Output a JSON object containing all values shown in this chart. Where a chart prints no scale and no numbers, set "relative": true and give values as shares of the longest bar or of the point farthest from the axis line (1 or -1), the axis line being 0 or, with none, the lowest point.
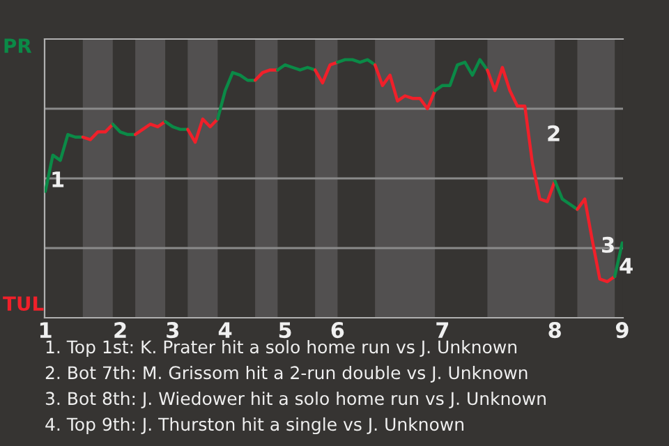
{
  "chart_data": {
    "type": "line",
    "relative": true,
    "categories": [
      "1",
      null,
      null,
      null,
      null,
      null,
      null,
      null,
      null,
      null,
      "2",
      null,
      null,
      null,
      null,
      null,
      null,
      "3",
      null,
      null,
      null,
      null,
      null,
      null,
      "4",
      null,
      null,
      null,
      null,
      null,
      null,
      null,
      "5",
      null,
      null,
      null,
      null,
      null,
      null,
      "6",
      null,
      null,
      null,
      null,
      null,
      null,
      null,
      null,
      null,
      null,
      null,
      null,
      null,
      "7",
      null,
      null,
      null,
      null,
      null,
      null,
      null,
      null,
      null,
      null,
      null,
      null,
      null,
      null,
      "8",
      null,
      null,
      null,
      null,
      null,
      null,
      null,
      null,
      "9"
    ],
    "series": [
      {
        "color": "#0b8a47",
        "values": [
          0.49,
          0.63,
          0.61,
          0.71,
          0.7,
          0.7,
          null,
          null,
          null,
          null,
          null,
          null,
          null,
          null,
          null,
          null,
          null,
          null,
          null,
          null,
          null,
          null,
          null,
          null,
          null,
          null,
          null,
          null,
          null,
          null,
          null,
          null,
          null,
          null,
          null,
          null,
          null,
          null,
          null,
          null,
          null,
          null,
          null,
          null,
          null,
          null,
          null,
          null,
          null,
          null,
          null,
          null,
          null,
          null,
          null,
          null,
          null,
          null,
          null,
          null,
          null,
          null,
          null,
          null,
          null,
          null,
          null,
          null,
          null,
          null,
          null,
          null,
          null,
          null,
          null,
          null,
          null,
          null
        ]
      },
      {
        "color": "#f0202a",
        "values": [
          null,
          null,
          null,
          null,
          null,
          0.7,
          0.69,
          0.72,
          0.72,
          0.75,
          null,
          null,
          null,
          null,
          null,
          null,
          null,
          null,
          null,
          null,
          null,
          null,
          null,
          null,
          null,
          null,
          null,
          null,
          null,
          null,
          null,
          null,
          null,
          null,
          null,
          null,
          null,
          null,
          null,
          null,
          null,
          null,
          null,
          null,
          null,
          null,
          null,
          null,
          null,
          null,
          null,
          null,
          null,
          null,
          null,
          null,
          null,
          null,
          null,
          null,
          null,
          null,
          null,
          null,
          null,
          null,
          null,
          null,
          null,
          null,
          null,
          null,
          null,
          null,
          null,
          null,
          null,
          null
        ]
      },
      {
        "color": "#0b8a47",
        "values": [
          null,
          null,
          null,
          null,
          null,
          null,
          null,
          null,
          null,
          0.75,
          0.72,
          0.71,
          0.71,
          null,
          null,
          null,
          null,
          null,
          null,
          null,
          null,
          null,
          null,
          null,
          null,
          null,
          null,
          null,
          null,
          null,
          null,
          null,
          null,
          null,
          null,
          null,
          null,
          null,
          null,
          null,
          null,
          null,
          null,
          null,
          null,
          null,
          null,
          null,
          null,
          null,
          null,
          null,
          null,
          null,
          null,
          null,
          null,
          null,
          null,
          null,
          null,
          null,
          null,
          null,
          null,
          null,
          null,
          null,
          null,
          null,
          null,
          null,
          null,
          null,
          null,
          null,
          null,
          null
        ]
      },
      {
        "color": "#f0202a",
        "values": [
          null,
          null,
          null,
          null,
          null,
          null,
          null,
          null,
          null,
          null,
          null,
          null,
          0.71,
          0.73,
          0.75,
          0.74,
          0.76,
          null,
          null,
          null,
          null,
          null,
          null,
          null,
          null,
          null,
          null,
          null,
          null,
          null,
          null,
          null,
          null,
          null,
          null,
          null,
          null,
          null,
          null,
          null,
          null,
          null,
          null,
          null,
          null,
          null,
          null,
          null,
          null,
          null,
          null,
          null,
          null,
          null,
          null,
          null,
          null,
          null,
          null,
          null,
          null,
          null,
          null,
          null,
          null,
          null,
          null,
          null,
          null,
          null,
          null,
          null,
          null,
          null,
          null,
          null,
          null,
          null
        ]
      },
      {
        "color": "#0b8a47",
        "values": [
          null,
          null,
          null,
          null,
          null,
          null,
          null,
          null,
          null,
          null,
          null,
          null,
          null,
          null,
          null,
          null,
          0.76,
          0.74,
          0.73,
          0.73,
          null,
          null,
          null,
          null,
          null,
          null,
          null,
          null,
          null,
          null,
          null,
          null,
          null,
          null,
          null,
          null,
          null,
          null,
          null,
          null,
          null,
          null,
          null,
          null,
          null,
          null,
          null,
          null,
          null,
          null,
          null,
          null,
          null,
          null,
          null,
          null,
          null,
          null,
          null,
          null,
          null,
          null,
          null,
          null,
          null,
          null,
          null,
          null,
          null,
          null,
          null,
          null,
          null,
          null,
          null,
          null,
          null,
          null
        ]
      },
      {
        "color": "#f0202a",
        "values": [
          null,
          null,
          null,
          null,
          null,
          null,
          null,
          null,
          null,
          null,
          null,
          null,
          null,
          null,
          null,
          null,
          null,
          null,
          null,
          0.73,
          0.68,
          0.77,
          0.74,
          0.77,
          null,
          null,
          null,
          null,
          null,
          null,
          null,
          null,
          null,
          null,
          null,
          null,
          null,
          null,
          null,
          null,
          null,
          null,
          null,
          null,
          null,
          null,
          null,
          null,
          null,
          null,
          null,
          null,
          null,
          null,
          null,
          null,
          null,
          null,
          null,
          null,
          null,
          null,
          null,
          null,
          null,
          null,
          null,
          null,
          null,
          null,
          null,
          null,
          null,
          null,
          null,
          null,
          null,
          null
        ]
      },
      {
        "color": "#0b8a47",
        "values": [
          null,
          null,
          null,
          null,
          null,
          null,
          null,
          null,
          null,
          null,
          null,
          null,
          null,
          null,
          null,
          null,
          null,
          null,
          null,
          null,
          null,
          null,
          null,
          0.77,
          0.88,
          0.95,
          0.94,
          0.92,
          0.92,
          null,
          null,
          null,
          null,
          null,
          null,
          null,
          null,
          null,
          null,
          null,
          null,
          null,
          null,
          null,
          null,
          null,
          null,
          null,
          null,
          null,
          null,
          null,
          null,
          null,
          null,
          null,
          null,
          null,
          null,
          null,
          null,
          null,
          null,
          null,
          null,
          null,
          null,
          null,
          null,
          null,
          null,
          null,
          null,
          null,
          null,
          null,
          null,
          null
        ]
      },
      {
        "color": "#f0202a",
        "values": [
          null,
          null,
          null,
          null,
          null,
          null,
          null,
          null,
          null,
          null,
          null,
          null,
          null,
          null,
          null,
          null,
          null,
          null,
          null,
          null,
          null,
          null,
          null,
          null,
          null,
          null,
          null,
          null,
          0.92,
          0.95,
          0.96,
          0.96,
          null,
          null,
          null,
          null,
          null,
          null,
          null,
          null,
          null,
          null,
          null,
          null,
          null,
          null,
          null,
          null,
          null,
          null,
          null,
          null,
          null,
          null,
          null,
          null,
          null,
          null,
          null,
          null,
          null,
          null,
          null,
          null,
          null,
          null,
          null,
          null,
          null,
          null,
          null,
          null,
          null,
          null,
          null,
          null,
          null,
          null
        ]
      },
      {
        "color": "#0b8a47",
        "values": [
          null,
          null,
          null,
          null,
          null,
          null,
          null,
          null,
          null,
          null,
          null,
          null,
          null,
          null,
          null,
          null,
          null,
          null,
          null,
          null,
          null,
          null,
          null,
          null,
          null,
          null,
          null,
          null,
          null,
          null,
          null,
          0.96,
          0.98,
          0.97,
          0.96,
          0.97,
          0.96,
          null,
          null,
          null,
          null,
          null,
          null,
          null,
          null,
          null,
          null,
          null,
          null,
          null,
          null,
          null,
          null,
          null,
          null,
          null,
          null,
          null,
          null,
          null,
          null,
          null,
          null,
          null,
          null,
          null,
          null,
          null,
          null,
          null,
          null,
          null,
          null,
          null,
          null,
          null,
          null,
          null
        ]
      },
      {
        "color": "#f0202a",
        "values": [
          null,
          null,
          null,
          null,
          null,
          null,
          null,
          null,
          null,
          null,
          null,
          null,
          null,
          null,
          null,
          null,
          null,
          null,
          null,
          null,
          null,
          null,
          null,
          null,
          null,
          null,
          null,
          null,
          null,
          null,
          null,
          null,
          null,
          null,
          null,
          null,
          0.96,
          0.91,
          0.98,
          0.99,
          null,
          null,
          null,
          null,
          null,
          null,
          null,
          null,
          null,
          null,
          null,
          null,
          null,
          null,
          null,
          null,
          null,
          null,
          null,
          null,
          null,
          null,
          null,
          null,
          null,
          null,
          null,
          null,
          null,
          null,
          null,
          null,
          null,
          null,
          null,
          null,
          null,
          null
        ]
      },
      {
        "color": "#0b8a47",
        "values": [
          null,
          null,
          null,
          null,
          null,
          null,
          null,
          null,
          null,
          null,
          null,
          null,
          null,
          null,
          null,
          null,
          null,
          null,
          null,
          null,
          null,
          null,
          null,
          null,
          null,
          null,
          null,
          null,
          null,
          null,
          null,
          null,
          null,
          null,
          null,
          null,
          null,
          null,
          null,
          0.99,
          1,
          1,
          0.99,
          1,
          0.98,
          null,
          null,
          null,
          null,
          null,
          null,
          null,
          null,
          null,
          null,
          null,
          null,
          null,
          null,
          null,
          null,
          null,
          null,
          null,
          null,
          null,
          null,
          null,
          null,
          null,
          null,
          null,
          null,
          null,
          null,
          null,
          null,
          null
        ]
      },
      {
        "color": "#f0202a",
        "values": [
          null,
          null,
          null,
          null,
          null,
          null,
          null,
          null,
          null,
          null,
          null,
          null,
          null,
          null,
          null,
          null,
          null,
          null,
          null,
          null,
          null,
          null,
          null,
          null,
          null,
          null,
          null,
          null,
          null,
          null,
          null,
          null,
          null,
          null,
          null,
          null,
          null,
          null,
          null,
          null,
          null,
          null,
          null,
          null,
          0.98,
          0.9,
          0.94,
          0.84,
          0.86,
          0.85,
          0.85,
          0.81,
          0.88,
          null,
          null,
          null,
          null,
          null,
          null,
          null,
          null,
          null,
          null,
          null,
          null,
          null,
          null,
          null,
          null,
          null,
          null,
          null,
          null,
          null,
          null,
          null,
          null,
          null
        ]
      },
      {
        "color": "#0b8a47",
        "values": [
          null,
          null,
          null,
          null,
          null,
          null,
          null,
          null,
          null,
          null,
          null,
          null,
          null,
          null,
          null,
          null,
          null,
          null,
          null,
          null,
          null,
          null,
          null,
          null,
          null,
          null,
          null,
          null,
          null,
          null,
          null,
          null,
          null,
          null,
          null,
          null,
          null,
          null,
          null,
          null,
          null,
          null,
          null,
          null,
          null,
          null,
          null,
          null,
          null,
          null,
          null,
          null,
          0.88,
          0.9,
          0.9,
          0.98,
          0.99,
          0.94,
          1,
          0.96,
          null,
          null,
          null,
          null,
          null,
          null,
          null,
          null,
          null,
          null,
          null,
          null,
          null,
          null,
          null,
          null,
          null,
          null
        ]
      },
      {
        "color": "#f0202a",
        "values": [
          null,
          null,
          null,
          null,
          null,
          null,
          null,
          null,
          null,
          null,
          null,
          null,
          null,
          null,
          null,
          null,
          null,
          null,
          null,
          null,
          null,
          null,
          null,
          null,
          null,
          null,
          null,
          null,
          null,
          null,
          null,
          null,
          null,
          null,
          null,
          null,
          null,
          null,
          null,
          null,
          null,
          null,
          null,
          null,
          null,
          null,
          null,
          null,
          null,
          null,
          null,
          null,
          null,
          null,
          null,
          null,
          null,
          null,
          null,
          0.96,
          0.88,
          0.97,
          0.88,
          0.82,
          0.82,
          0.6,
          0.46,
          0.45,
          0.53,
          null,
          null,
          null,
          null,
          null,
          null,
          null,
          null,
          null
        ]
      },
      {
        "color": "#0b8a47",
        "values": [
          null,
          null,
          null,
          null,
          null,
          null,
          null,
          null,
          null,
          null,
          null,
          null,
          null,
          null,
          null,
          null,
          null,
          null,
          null,
          null,
          null,
          null,
          null,
          null,
          null,
          null,
          null,
          null,
          null,
          null,
          null,
          null,
          null,
          null,
          null,
          null,
          null,
          null,
          null,
          null,
          null,
          null,
          null,
          null,
          null,
          null,
          null,
          null,
          null,
          null,
          null,
          null,
          null,
          null,
          null,
          null,
          null,
          null,
          null,
          null,
          null,
          null,
          null,
          null,
          null,
          null,
          null,
          null,
          0.53,
          0.46,
          0.44,
          0.42,
          null,
          null,
          null,
          null,
          null,
          null
        ]
      },
      {
        "color": "#f0202a",
        "values": [
          null,
          null,
          null,
          null,
          null,
          null,
          null,
          null,
          null,
          null,
          null,
          null,
          null,
          null,
          null,
          null,
          null,
          null,
          null,
          null,
          null,
          null,
          null,
          null,
          null,
          null,
          null,
          null,
          null,
          null,
          null,
          null,
          null,
          null,
          null,
          null,
          null,
          null,
          null,
          null,
          null,
          null,
          null,
          null,
          null,
          null,
          null,
          null,
          null,
          null,
          null,
          null,
          null,
          null,
          null,
          null,
          null,
          null,
          null,
          null,
          null,
          null,
          null,
          null,
          null,
          null,
          null,
          null,
          null,
          null,
          null,
          0.42,
          0.46,
          0.3,
          0.15,
          0.14,
          0.16,
          null
        ]
      },
      {
        "color": "#0b8a47",
        "values": [
          null,
          null,
          null,
          null,
          null,
          null,
          null,
          null,
          null,
          null,
          null,
          null,
          null,
          null,
          null,
          null,
          null,
          null,
          null,
          null,
          null,
          null,
          null,
          null,
          null,
          null,
          null,
          null,
          null,
          null,
          null,
          null,
          null,
          null,
          null,
          null,
          null,
          null,
          null,
          null,
          null,
          null,
          null,
          null,
          null,
          null,
          null,
          null,
          null,
          null,
          null,
          null,
          null,
          null,
          null,
          null,
          null,
          null,
          null,
          null,
          null,
          null,
          null,
          null,
          null,
          null,
          null,
          null,
          null,
          null,
          null,
          null,
          null,
          null,
          null,
          null,
          0.16,
          0.29
        ]
      }
    ],
    "tick_labels": "x",
    "grid": "y",
    "marker": "none",
    "line_style": "solid",
    "annotations": [
      "PR",
      "TUL",
      "1",
      "2",
      "3",
      "4",
      "1. Top 1st: K. Prater hit a solo home run vs J. Unknown",
      "2. Bot 7th: M. Grissom hit a 2-run double vs J. Unknown",
      "3. Bot 8th: J. Wiedower hit a solo home run vs J. Unknown",
      "4. Top 9th: J. Thurston hit a single vs J. Unknown"
    ]
  }
}
